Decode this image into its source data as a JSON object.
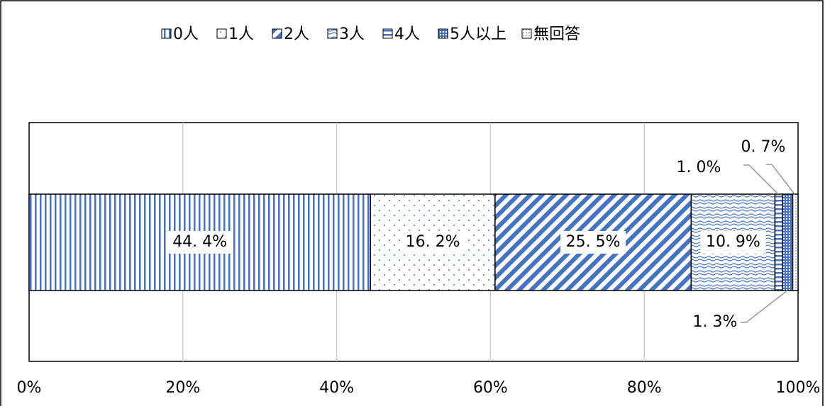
{
  "chart_data": {
    "type": "stacked_bar_horizontal_100",
    "series": [
      {
        "name": "0人",
        "color": "#4472c4",
        "values": [
          44.4
        ],
        "value_labels": [
          "44. 4%"
        ]
      },
      {
        "name": "1人",
        "color": "#4472c4",
        "values": [
          16.2
        ],
        "value_labels": [
          "16. 2%"
        ]
      },
      {
        "name": "2人",
        "color": "#4472c4",
        "values": [
          25.5
        ],
        "value_labels": [
          "25. 5%"
        ]
      },
      {
        "name": "3人",
        "color": "#4472c4",
        "values": [
          10.9
        ],
        "value_labels": [
          "10. 9%"
        ]
      },
      {
        "name": "4人",
        "color": "#4472c4",
        "values": [
          1.0
        ],
        "value_labels": [
          "1. 0%"
        ]
      },
      {
        "name": "5人以上",
        "color": "#4472c4",
        "values": [
          1.3
        ],
        "value_labels": [
          "1. 3%"
        ]
      },
      {
        "name": "無回答",
        "color": "#4472c4",
        "values": [
          0.7
        ],
        "value_labels": [
          "0. 7%"
        ]
      }
    ],
    "xlim": [
      0,
      100
    ],
    "xticks": [
      {
        "value": 0,
        "label": "0%"
      },
      {
        "value": 20,
        "label": "20%"
      },
      {
        "value": 40,
        "label": "40%"
      },
      {
        "value": 60,
        "label": "60%"
      },
      {
        "value": 80,
        "label": "80%"
      },
      {
        "value": 100,
        "label": "100%"
      }
    ],
    "grid": true,
    "legend": "top"
  }
}
